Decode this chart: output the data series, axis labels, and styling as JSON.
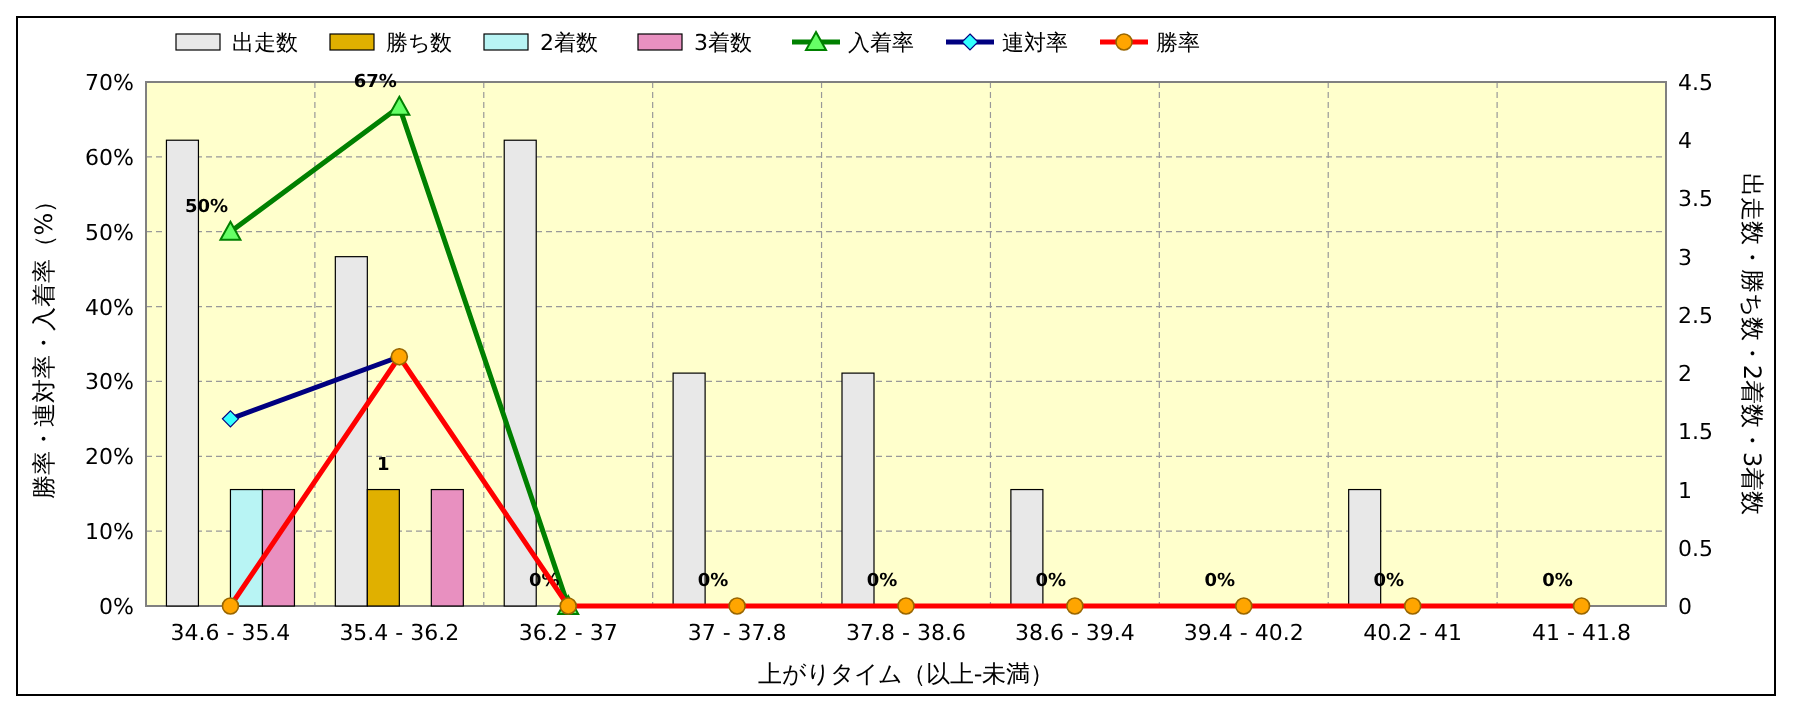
{
  "chart_data": {
    "type": "bar",
    "xlabel": "上がりタイム（以上-未満）",
    "ylabel": "勝率・連対率・入着率（%）",
    "y2label": "出走数・勝ち数・2着数・3着数",
    "categories": [
      "34.6 - 35.4",
      "35.4 - 36.2",
      "36.2 - 37",
      "37 - 37.8",
      "37.8 - 38.6",
      "38.6 - 39.4",
      "39.4 - 40.2",
      "40.2 - 41",
      "41 - 41.8"
    ],
    "ylim": [
      0,
      70
    ],
    "yticks": [
      {
        "value": 0,
        "label": "0%"
      },
      {
        "value": 10,
        "label": "10%"
      },
      {
        "value": 20,
        "label": "20%"
      },
      {
        "value": 30,
        "label": "30%"
      },
      {
        "value": 40,
        "label": "40%"
      },
      {
        "value": 50,
        "label": "50%"
      },
      {
        "value": 60,
        "label": "60%"
      },
      {
        "value": 70,
        "label": "70%"
      }
    ],
    "y2lim": [
      0,
      4.5
    ],
    "y2ticks": [
      0,
      0.5,
      1,
      1.5,
      2,
      2.5,
      3,
      3.5,
      4,
      4.5
    ],
    "grid": true,
    "legend": "top",
    "series": [
      {
        "name": "出走数",
        "axis": "y2",
        "color": "#e8e8e8",
        "values": [
          4,
          3,
          4,
          2,
          2,
          1,
          0,
          1,
          0
        ]
      },
      {
        "name": "勝ち数",
        "axis": "y2",
        "color": "#e0b000",
        "values": [
          0,
          1,
          0,
          0,
          0,
          0,
          0,
          0,
          0
        ],
        "value_labels": [
          null,
          "1",
          null,
          null,
          null,
          null,
          null,
          null,
          null
        ]
      },
      {
        "name": "2着数",
        "axis": "y2",
        "color": "#b8f4f4",
        "values": [
          1,
          0,
          0,
          0,
          0,
          0,
          0,
          0,
          0
        ]
      },
      {
        "name": "3着数",
        "axis": "y2",
        "color": "#e890c0",
        "values": [
          1,
          1,
          0,
          0,
          0,
          0,
          0,
          0,
          0
        ]
      },
      {
        "name": "入着率",
        "type": "line",
        "axis": "y",
        "color": "#008000",
        "marker": "triangle",
        "values": [
          50,
          66.7,
          0,
          null,
          null,
          null,
          null,
          null,
          null
        ],
        "value_labels": [
          "50%",
          "67%",
          "0%",
          null,
          null,
          null,
          null,
          null,
          null
        ]
      },
      {
        "name": "連対率",
        "type": "line",
        "axis": "y",
        "color": "#000080",
        "marker": "diamond",
        "values": [
          25,
          33.3,
          null,
          null,
          null,
          null,
          null,
          null,
          null
        ]
      },
      {
        "name": "勝率",
        "type": "line",
        "axis": "y",
        "color": "#ff0000",
        "marker": "circle",
        "values": [
          0,
          33.3,
          0,
          0,
          0,
          0,
          0,
          0,
          0
        ],
        "value_labels": [
          null,
          null,
          null,
          "0%",
          "0%",
          "0%",
          "0%",
          "0%",
          "0%"
        ]
      }
    ]
  }
}
